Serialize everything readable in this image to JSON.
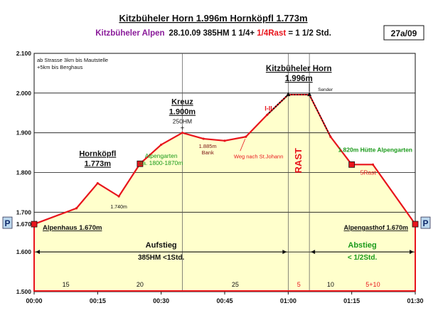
{
  "header": {
    "title": "Kitzbüheler Horn 1.996m Hornköpfl 1.773m",
    "region": "Kitzbüheler Alpen",
    "details_black": "28.10.09    385HM    1 1/4+ ",
    "details_red": "1/4Rast",
    "details_tail": " = 1 1/2 Std.",
    "badge": "27a/09"
  },
  "colors": {
    "profile": "#e8141c",
    "fill": "#ffffcc",
    "green": "#1a9a1a",
    "purple": "#8a1b9a"
  },
  "chart_data": {
    "type": "area",
    "xlabel": "",
    "ylabel": "",
    "x_ticks": [
      "00:00",
      "00:15",
      "00:30",
      "00:45",
      "01:00",
      "01:15",
      "01:30"
    ],
    "y_ticks": [
      "1.500",
      "1.600",
      "1.700",
      "1.800",
      "1.900",
      "2.000",
      "2.100"
    ],
    "xlim": [
      0,
      90
    ],
    "ylim": [
      1500,
      2100
    ],
    "grid": true,
    "profile": [
      {
        "x": 0,
        "y": 1670
      },
      {
        "x": 10,
        "y": 1710
      },
      {
        "x": 15,
        "y": 1773
      },
      {
        "x": 20,
        "y": 1740
      },
      {
        "x": 25,
        "y": 1822
      },
      {
        "x": 30,
        "y": 1870
      },
      {
        "x": 35,
        "y": 1900
      },
      {
        "x": 40,
        "y": 1885
      },
      {
        "x": 45,
        "y": 1880
      },
      {
        "x": 50,
        "y": 1890
      },
      {
        "x": 55,
        "y": 1945
      },
      {
        "x": 60,
        "y": 1996
      },
      {
        "x": 65,
        "y": 1996
      },
      {
        "x": 70,
        "y": 1890
      },
      {
        "x": 75,
        "y": 1820
      },
      {
        "x": 80,
        "y": 1820
      },
      {
        "x": 90,
        "y": 1670
      }
    ],
    "dashed_segment": [
      55,
      60
    ],
    "vlines": [
      35,
      60,
      65
    ],
    "markers": [
      {
        "x": 0,
        "y": 1670
      },
      {
        "x": 25,
        "y": 1822
      },
      {
        "x": 75,
        "y": 1820
      },
      {
        "x": 90,
        "y": 1670
      }
    ],
    "segments": [
      {
        "x": 7.5,
        "label": "15"
      },
      {
        "x": 25,
        "label": "20"
      },
      {
        "x": 47.5,
        "label": "25"
      },
      {
        "x": 62.5,
        "label": "5"
      },
      {
        "x": 70,
        "label": "10"
      },
      {
        "x": 80,
        "label": "5+10"
      }
    ],
    "annotations": {
      "start_note_1": "ab Strasse 3km bis Mautstelle",
      "start_note_2": "+5km bis Berghaus",
      "hornkoepfl_name": "Hornköpfl",
      "hornkoepfl_alt": "1.773m",
      "alpengarten_1": "Alpengarten",
      "alpengarten_2": "ca. 1800-1870m",
      "kreuz_name": "Kreuz",
      "kreuz_alt": "1.900m",
      "kreuz_hm": "250HM",
      "kreuz_cross": "+",
      "bank_1": "1.885m",
      "bank_2": "Bank",
      "weg": "Weg nach St.Johann",
      "difficulty": "I-II",
      "summit_name": "Kitzbüheler Horn",
      "summit_alt": "1.996m",
      "sender": "Sender",
      "rast": "RAST",
      "huette": "1.820m Hütte Alpengarten",
      "rast5": "5Rast",
      "low_point": "1.740m",
      "start_name": "Alpenhaus 1.670m",
      "end_name": "Alpengasthof 1.670m",
      "y_start_label": "1.670",
      "parking": "P",
      "aufstieg": "Aufstieg",
      "aufstieg_detail": "385HM  <1Std.",
      "abstieg": "Abstieg",
      "abstieg_detail": "< 1/2Std."
    }
  }
}
